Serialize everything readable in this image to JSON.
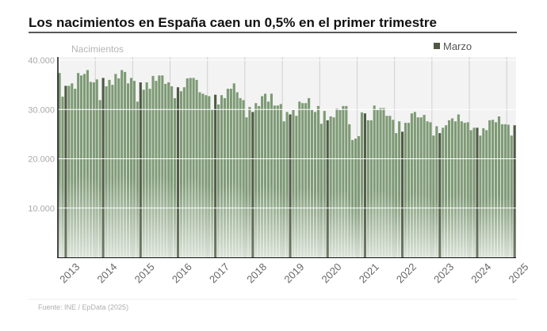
{
  "title": "Los nacimientos en España caen un 0,5% en el primer trimestre",
  "source": "Fuente: INE / EpData (2025)",
  "colors": {
    "bar": "#7d9a74",
    "highlight": "#4e5843",
    "plot_bg": "#f3f3f3",
    "grid": "#ffffff"
  },
  "chart_data": {
    "type": "bar",
    "ylabel": "Nacimientos",
    "ylim": [
      0,
      40000
    ],
    "yticks": [
      {
        "v": 10000,
        "label": "10.000"
      },
      {
        "v": 20000,
        "label": "20.000"
      },
      {
        "v": 30000,
        "label": "30.000"
      },
      {
        "v": 40000,
        "label": "40.000"
      }
    ],
    "xticks": [
      "2013",
      "2014",
      "2015",
      "2016",
      "2017",
      "2018",
      "2019",
      "2020",
      "2021",
      "2022",
      "2023",
      "2024",
      "2025"
    ],
    "legend": {
      "label": "Marzo",
      "position": "top-right"
    },
    "highlight_month": 3,
    "grid": true,
    "start": "2013-01",
    "values": [
      37400,
      32600,
      34800,
      34800,
      35300,
      34200,
      37400,
      36900,
      37200,
      38000,
      35600,
      35500,
      36100,
      31900,
      36400,
      34700,
      36000,
      35000,
      37200,
      36300,
      38000,
      37600,
      35300,
      36400,
      35800,
      31600,
      35500,
      34000,
      35500,
      34200,
      36800,
      35800,
      36900,
      36900,
      35200,
      35500,
      34700,
      32300,
      34500,
      33700,
      34500,
      36300,
      36400,
      36400,
      36000,
      33500,
      33200,
      32900,
      32700,
      30000,
      33000,
      31000,
      32900,
      32300,
      34200,
      34200,
      35300,
      33500,
      32300,
      31900,
      28400,
      30500,
      29500,
      31300,
      30700,
      32700,
      33200,
      31600,
      33200,
      30800,
      30800,
      31100,
      27600,
      29500,
      29000,
      29900,
      28700,
      31600,
      31300,
      31300,
      32300,
      29900,
      29500,
      30700,
      27100,
      29700,
      27800,
      28600,
      28400,
      30200,
      29900,
      30700,
      30700,
      27000,
      23800,
      24100,
      24600,
      29400,
      29200,
      27800,
      27800,
      30800,
      29900,
      30300,
      30300,
      28700,
      28700,
      27900,
      25200,
      27600,
      25500,
      27300,
      27300,
      29200,
      29500,
      28400,
      28400,
      28900,
      27600,
      27400,
      24700,
      26600,
      25200,
      26300,
      26800,
      27800,
      28200,
      27600,
      29000,
      27600,
      27300,
      27400,
      25800,
      26300,
      26300,
      24700,
      26200,
      25800,
      27800,
      27900,
      27400,
      28600,
      27000,
      27000,
      26900,
      24700,
      26800
    ]
  }
}
